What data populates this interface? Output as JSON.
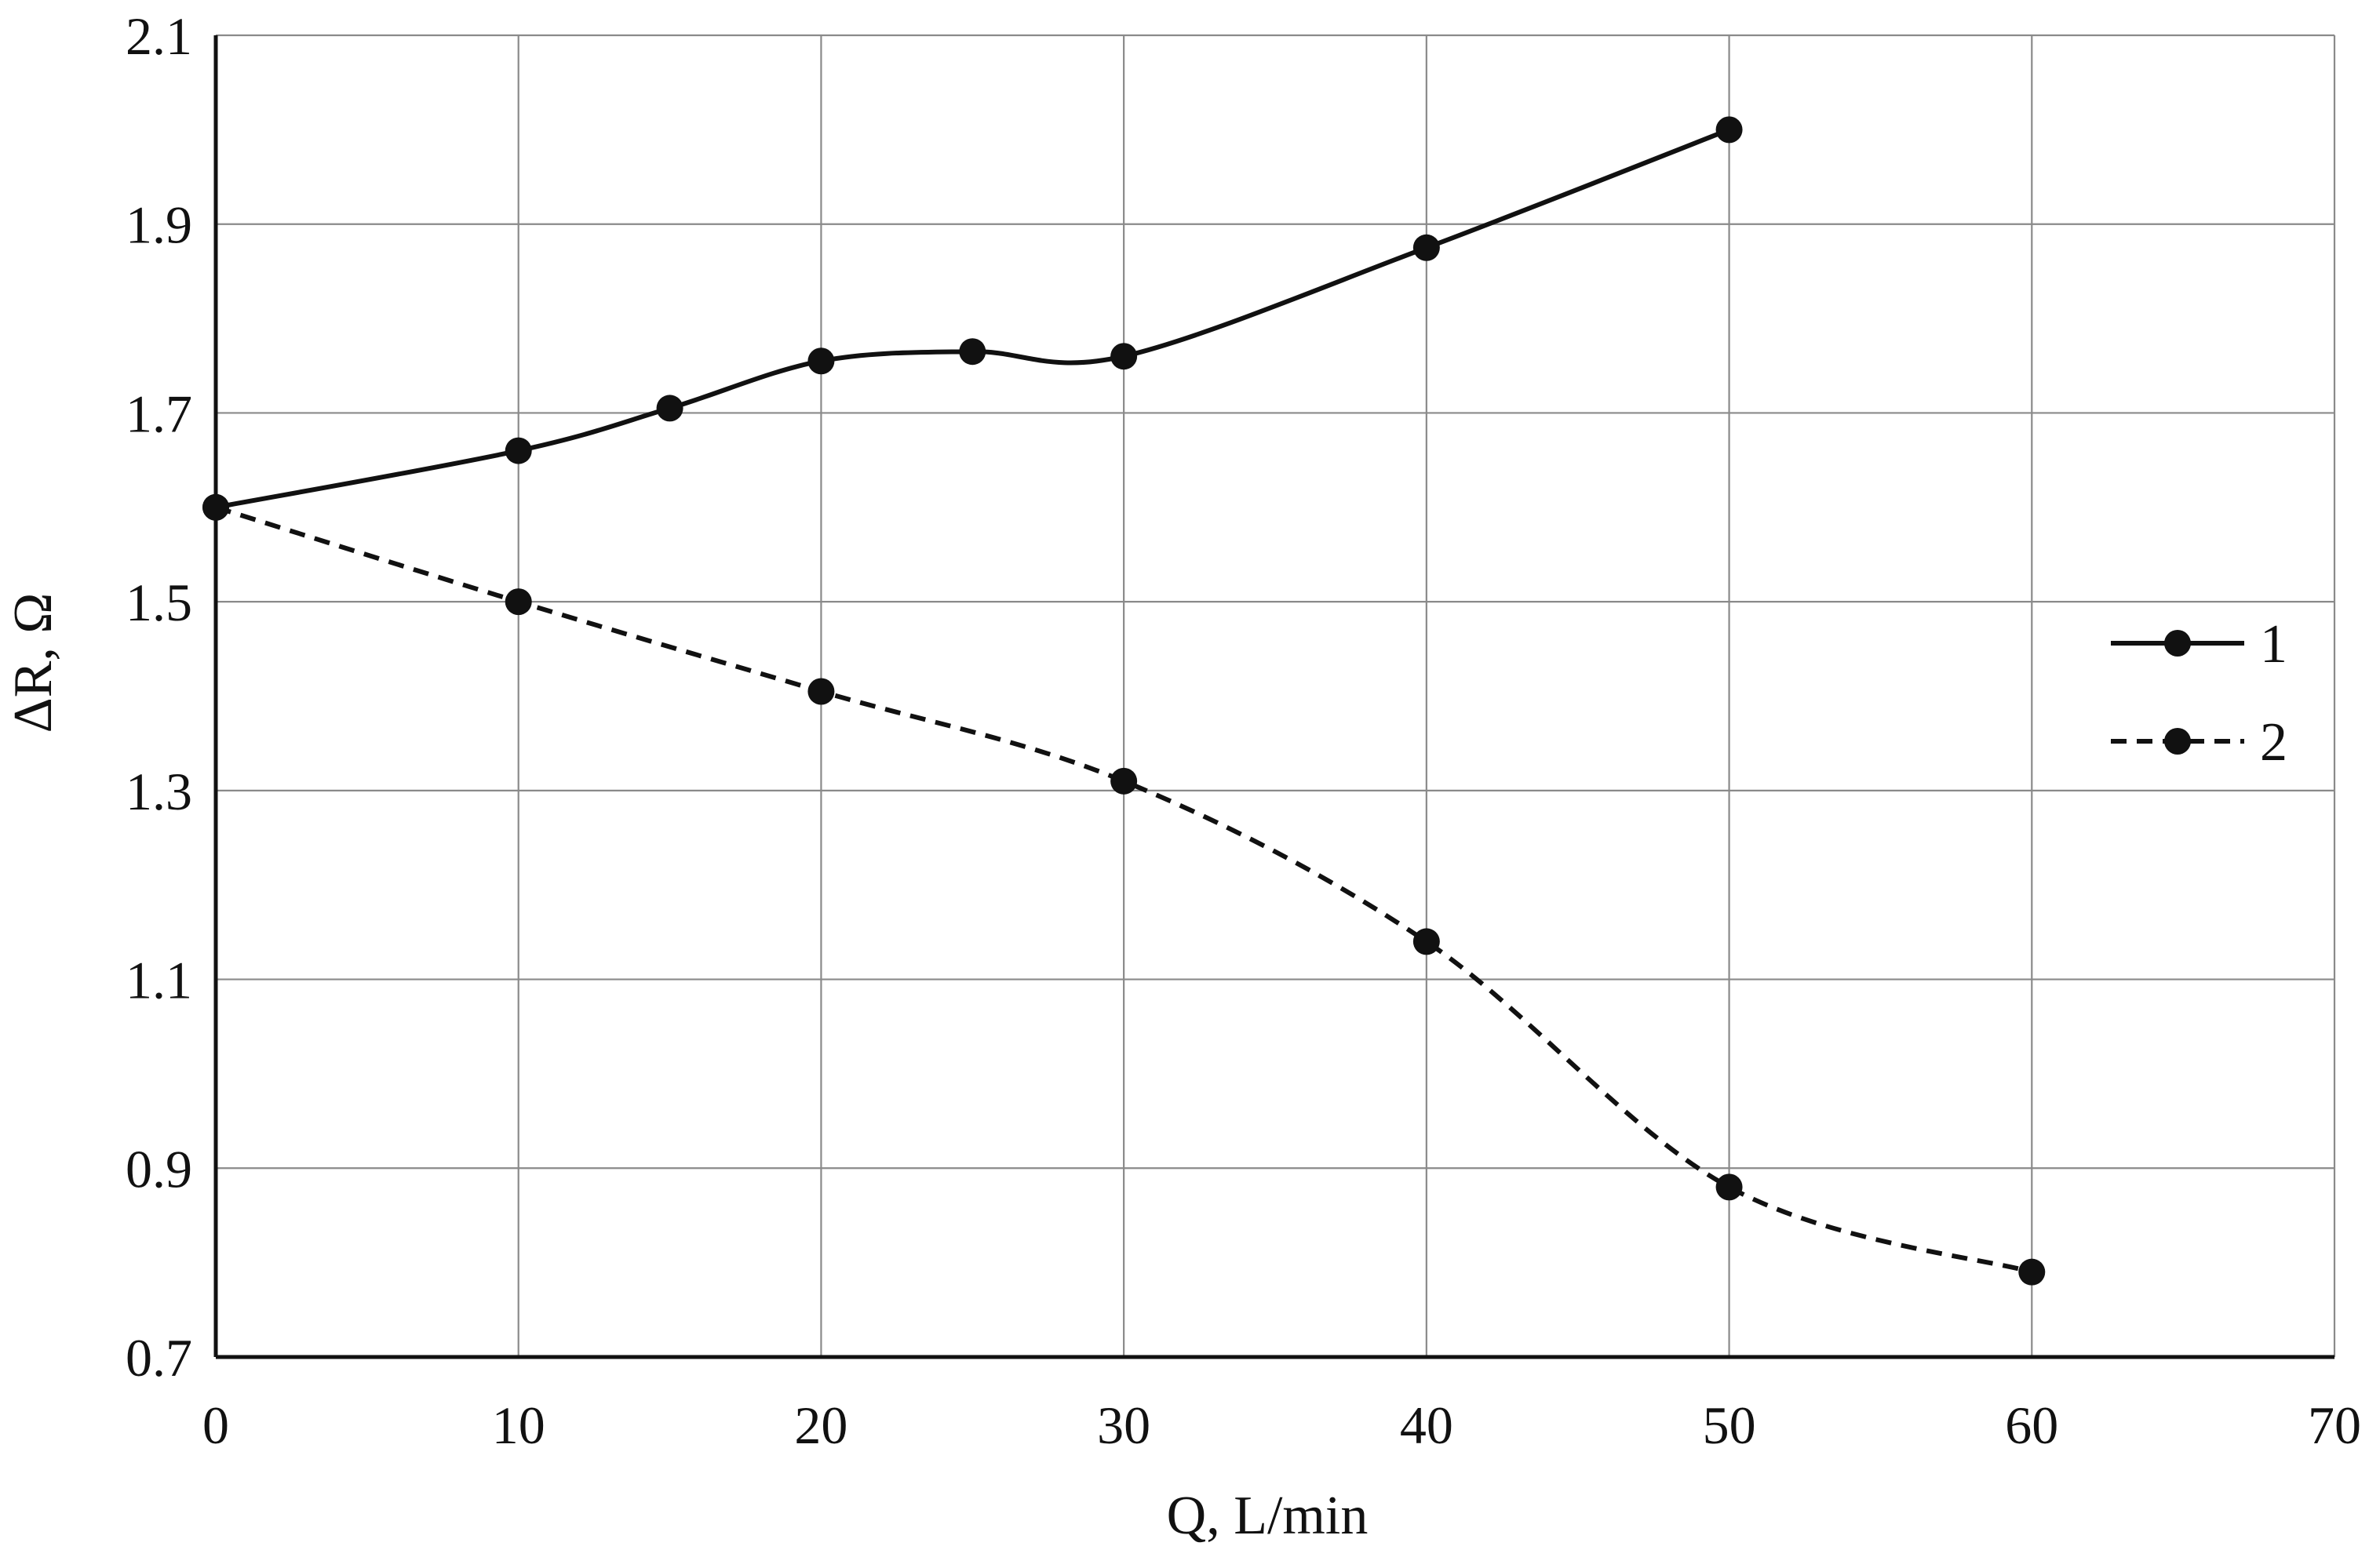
{
  "chart_data": {
    "type": "line",
    "xlabel": "Q, L/min",
    "ylabel": "ΔR, Ω",
    "xlim": [
      0,
      70
    ],
    "ylim": [
      0.7,
      2.1
    ],
    "x_ticks": [
      0,
      10,
      20,
      30,
      40,
      50,
      60,
      70
    ],
    "y_ticks": [
      0.7,
      0.9,
      1.1,
      1.3,
      1.5,
      1.7,
      1.9,
      2.1
    ],
    "x_tick_labels": [
      "0",
      "10",
      "20",
      "30",
      "40",
      "50",
      "60",
      "70"
    ],
    "y_tick_labels": [
      "0.7",
      "0.9",
      "1.1",
      "1.3",
      "1.5",
      "1.7",
      "1.9",
      "2.1"
    ],
    "grid": true,
    "legend_position": "right",
    "series": [
      {
        "name": "1",
        "line_style": "solid",
        "color": "#111111",
        "x": [
          0,
          10,
          15,
          20,
          25,
          30,
          40,
          50
        ],
        "y": [
          1.6,
          1.66,
          1.705,
          1.755,
          1.765,
          1.76,
          1.875,
          2.0
        ]
      },
      {
        "name": "2",
        "line_style": "dashed",
        "color": "#111111",
        "x": [
          0,
          10,
          20,
          30,
          40,
          50,
          60
        ],
        "y": [
          1.6,
          1.5,
          1.405,
          1.31,
          1.14,
          0.88,
          0.79
        ]
      }
    ]
  }
}
